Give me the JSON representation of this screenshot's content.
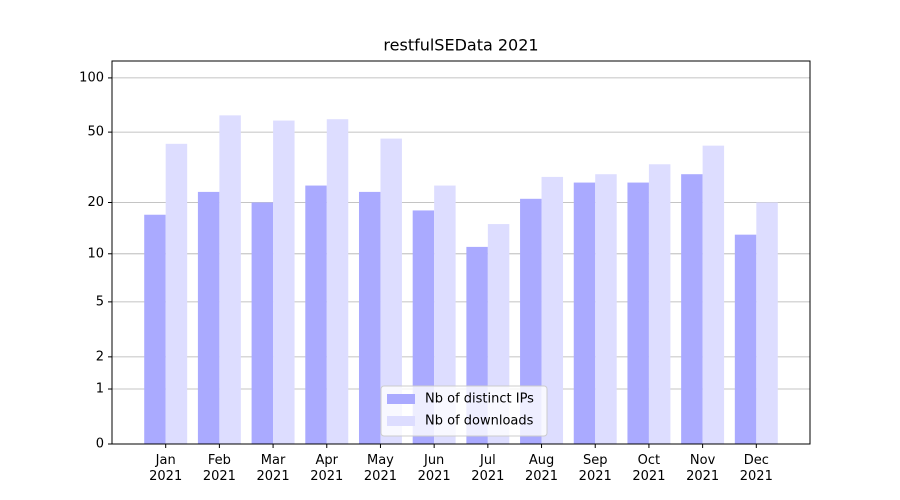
{
  "chart_data": {
    "type": "bar",
    "title": "restfulSEData 2021",
    "categories": [
      "Jan\n2021",
      "Feb\n2021",
      "Mar\n2021",
      "Apr\n2021",
      "May\n2021",
      "Jun\n2021",
      "Jul\n2021",
      "Aug\n2021",
      "Sep\n2021",
      "Oct\n2021",
      "Nov\n2021",
      "Dec\n2021"
    ],
    "series": [
      {
        "name": "Nb of distinct IPs",
        "color": "#aaaaff",
        "values": [
          17,
          23,
          20,
          25,
          23,
          18,
          11,
          21,
          26,
          26,
          29,
          13
        ]
      },
      {
        "name": "Nb of downloads",
        "color": "#ddddff",
        "values": [
          43,
          62,
          58,
          59,
          46,
          25,
          15,
          28,
          29,
          33,
          42,
          20
        ]
      }
    ],
    "yscale": "log1p",
    "ylim": [
      0,
      124
    ],
    "yticks": [
      0,
      1,
      2,
      5,
      10,
      20,
      50,
      100
    ],
    "grid": true,
    "legend": "lower center"
  }
}
